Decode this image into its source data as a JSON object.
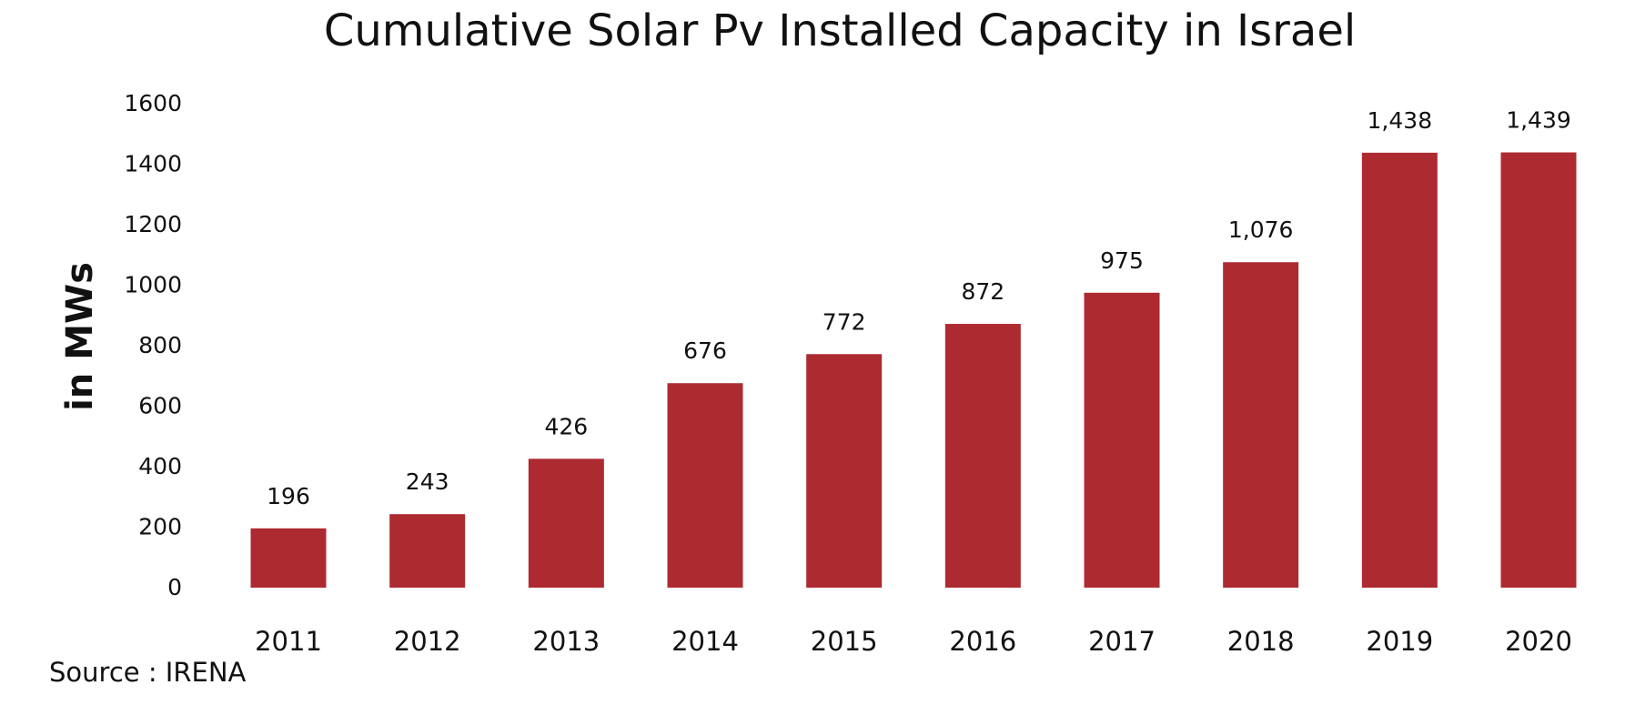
{
  "chart_data": {
    "type": "bar",
    "title": "Cumulative Solar Pv Installed Capacity in Israel",
    "xlabel": "",
    "ylabel": "in MWs",
    "categories": [
      "2011",
      "2012",
      "2013",
      "2014",
      "2015",
      "2016",
      "2017",
      "2018",
      "2019",
      "2020"
    ],
    "values": [
      196,
      243,
      426,
      676,
      772,
      872,
      975,
      1076,
      1438,
      1439
    ],
    "data_labels": [
      "196",
      "243",
      "426",
      "676",
      "772",
      "872",
      "975",
      "1,076",
      "1,438",
      "1,439"
    ],
    "yticks": [
      "0",
      "200",
      "400",
      "600",
      "800",
      "1000",
      "1200",
      "1400",
      "1600"
    ],
    "ylim": [
      0,
      1600
    ],
    "grid": false,
    "legend": "none",
    "bar_color": "#AE2A31",
    "source": "Source : IRENA"
  }
}
